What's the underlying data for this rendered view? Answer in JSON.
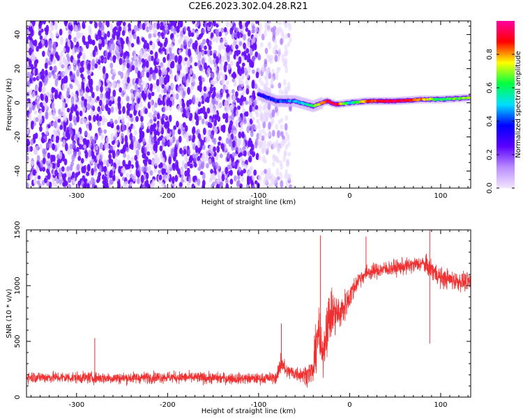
{
  "title": "C2E6.2023.302.04.28.R21",
  "colors": {
    "line": "#f03030",
    "speckle": "#7a1cff",
    "colormap": [
      "#f3e6ff",
      "#b98cff",
      "#5a00ff",
      "#0000ff",
      "#00e0ff",
      "#00ff40",
      "#ffff00",
      "#ff0000",
      "#ff00a0"
    ]
  },
  "chart_data": [
    {
      "type": "heatmap",
      "title": "",
      "xlabel": "Height of straight line (km)",
      "ylabel": "Frequency (Hz)",
      "xlim": [
        -355,
        133
      ],
      "ylim": [
        -50,
        48
      ],
      "xticks": [
        "-300",
        "-200",
        "-100",
        "0",
        "100"
      ],
      "xtick_values": [
        -300,
        -200,
        -100,
        0,
        100
      ],
      "yticks": [
        "40",
        "20",
        "0",
        "-20",
        "-40"
      ],
      "ytick_values": [
        40,
        20,
        0,
        -20,
        -40
      ],
      "colorbar": {
        "label": "Normalized spectral amplitude",
        "range": [
          0,
          1
        ],
        "ticks": [
          "0.0",
          "0.2",
          "0.4",
          "0.6",
          "0.8"
        ],
        "tick_values": [
          0.0,
          0.2,
          0.4,
          0.6,
          0.8
        ]
      },
      "regions": [
        {
          "name": "broadband noise",
          "x_range": [
            -355,
            -100
          ],
          "freq_range": [
            -50,
            48
          ],
          "amplitude": 0.12
        },
        {
          "name": "fading noise",
          "x_range": [
            -100,
            -65
          ],
          "freq_range": [
            -50,
            48
          ],
          "amplitude": 0.08
        }
      ],
      "ridge": {
        "description": "signal line",
        "points": [
          {
            "x": -100,
            "f": 5,
            "amplitude": 0.35
          },
          {
            "x": -80,
            "f": 1,
            "amplitude": 0.4
          },
          {
            "x": -60,
            "f": 1,
            "amplitude": 0.45
          },
          {
            "x": -40,
            "f": -2,
            "amplitude": 0.6
          },
          {
            "x": -25,
            "f": 1,
            "amplitude": 0.9
          },
          {
            "x": -15,
            "f": -1,
            "amplitude": 0.95
          },
          {
            "x": 0,
            "f": 0,
            "amplitude": 0.5
          },
          {
            "x": 20,
            "f": 1,
            "amplitude": 0.85
          },
          {
            "x": 50,
            "f": 1,
            "amplitude": 0.95
          },
          {
            "x": 80,
            "f": 2,
            "amplitude": 0.8
          },
          {
            "x": 100,
            "f": 2,
            "amplitude": 0.6
          },
          {
            "x": 133,
            "f": 3,
            "amplitude": 0.7
          }
        ]
      }
    },
    {
      "type": "line",
      "title": "",
      "xlabel": "Height of straight line (km)",
      "ylabel": "SNR (10 * v/v)",
      "xlim": [
        -355,
        133
      ],
      "ylim": [
        0,
        1500
      ],
      "xticks": [
        "-300",
        "-200",
        "-100",
        "0",
        "100"
      ],
      "xtick_values": [
        -300,
        -200,
        -100,
        0,
        100
      ],
      "yticks": [
        "1500",
        "1000",
        "500",
        "0"
      ],
      "ytick_values": [
        1500,
        1000,
        500,
        0
      ],
      "grid": false,
      "series": [
        {
          "name": "",
          "envelope": {
            "x": [
              -355,
              -300,
              -250,
              -200,
              -150,
              -100,
              -80,
              -75,
              -70,
              -50,
              -40,
              -35,
              -30,
              -25,
              -20,
              -10,
              0,
              10,
              20,
              40,
              60,
              80,
              90,
              100,
              120,
              133
            ],
            "center": [
              180,
              175,
              170,
              180,
              170,
              165,
              175,
              330,
              230,
              200,
              230,
              600,
              350,
              650,
              750,
              750,
              900,
              1060,
              1120,
              1150,
              1170,
              1200,
              1150,
              1070,
              1040,
              1030
            ],
            "spread": [
              80,
              80,
              80,
              80,
              80,
              75,
              80,
              180,
              100,
              120,
              200,
              450,
              250,
              400,
              350,
              250,
              180,
              120,
              110,
              110,
              110,
              110,
              150,
              140,
              130,
              130
            ]
          },
          "peaks": [
            {
              "x": -280,
              "y": 530
            },
            {
              "x": -75,
              "y": 660
            },
            {
              "x": -32,
              "y": 1450
            },
            {
              "x": 18,
              "y": 1440
            },
            {
              "x": 88,
              "y": 1500
            },
            {
              "x": 88,
              "y": 480
            }
          ]
        }
      ]
    }
  ]
}
